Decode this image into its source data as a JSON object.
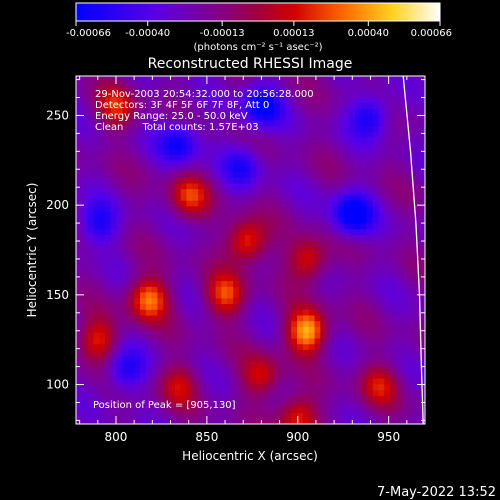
{
  "chart_data": {
    "type": "heatmap",
    "title": "Reconstructed RHESSI Image",
    "xlabel": "Heliocentric X (arcsec)",
    "ylabel": "Heliocentric Y (arcsec)",
    "xlim": [
      778,
      970
    ],
    "ylim": [
      78,
      272
    ],
    "xticks": [
      800,
      850,
      900,
      950
    ],
    "yticks": [
      100,
      150,
      200,
      250
    ],
    "colorbar": {
      "label": "(photons cm⁻² s⁻¹ asec⁻²)",
      "range": [
        -0.00066,
        0.00066
      ],
      "ticks": [
        "-0.00066",
        "-0.00040",
        "-0.00013",
        "0.00013",
        "0.00040",
        "0.00066"
      ]
    },
    "annotations": [
      "29-Nov-2003 20:54:32.000 to 20:56:28.000",
      "Detectors: 3F 4F 5F 6F 7F 8F, Att 0",
      "Energy Range: 25.0 - 50.0 keV",
      "Clean      Total counts: 1.57E+03"
    ],
    "peak_label": "Position of Peak = [905,130]",
    "limb": [
      [
        958,
        272
      ],
      [
        962,
        230
      ],
      [
        965,
        190
      ],
      [
        967,
        150
      ],
      [
        968,
        110
      ],
      [
        969,
        78
      ]
    ],
    "bright_regions": [
      {
        "x": 905,
        "y": 130,
        "intensity": 0.00066
      },
      {
        "x": 818,
        "y": 148,
        "intensity": 0.00055
      },
      {
        "x": 872,
        "y": 180,
        "intensity": 0.0005
      },
      {
        "x": 860,
        "y": 150,
        "intensity": 0.00045
      },
      {
        "x": 906,
        "y": 170,
        "intensity": 0.00042
      },
      {
        "x": 840,
        "y": 205,
        "intensity": 0.0004
      },
      {
        "x": 900,
        "y": 82,
        "intensity": 0.00045
      },
      {
        "x": 790,
        "y": 125,
        "intensity": 0.0004
      },
      {
        "x": 800,
        "y": 255,
        "intensity": 0.00036
      },
      {
        "x": 880,
        "y": 105,
        "intensity": 0.00035
      },
      {
        "x": 945,
        "y": 100,
        "intensity": 0.00032
      },
      {
        "x": 835,
        "y": 100,
        "intensity": 0.0003
      }
    ],
    "dark_regions": [
      {
        "x": 930,
        "y": 195,
        "intensity": -0.00055
      },
      {
        "x": 880,
        "y": 255,
        "intensity": -0.00045
      },
      {
        "x": 835,
        "y": 235,
        "intensity": -0.0004
      },
      {
        "x": 940,
        "y": 250,
        "intensity": -0.0004
      },
      {
        "x": 790,
        "y": 190,
        "intensity": -0.00035
      },
      {
        "x": 805,
        "y": 108,
        "intensity": -0.00035
      },
      {
        "x": 870,
        "y": 222,
        "intensity": -0.0003
      }
    ]
  },
  "footer": {
    "timestamp": "7-May-2022 13:52"
  }
}
